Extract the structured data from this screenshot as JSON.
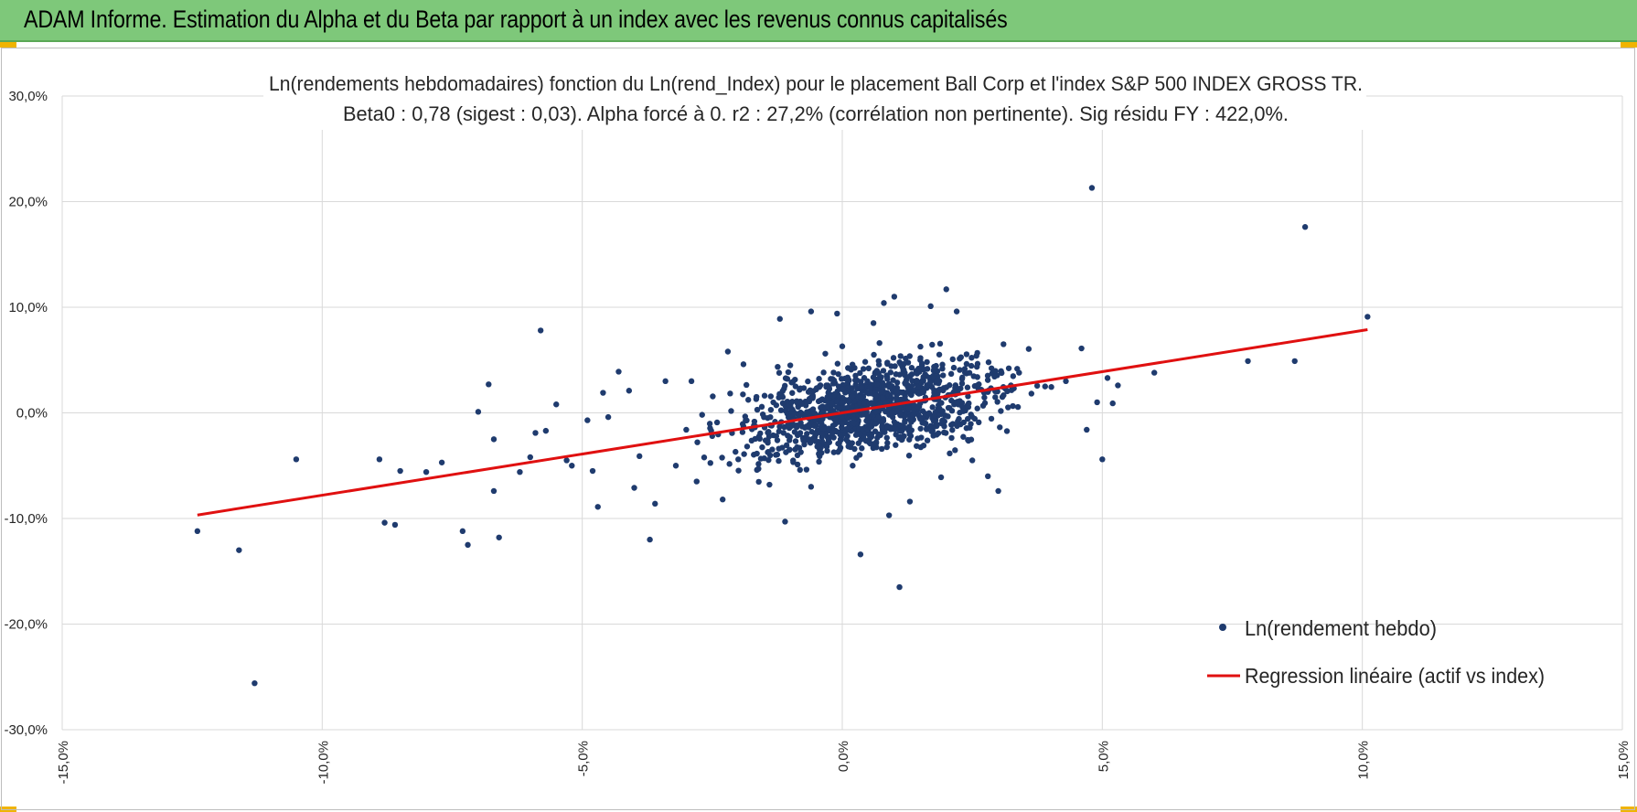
{
  "header": {
    "title": "ADAM Informe. Estimation du Alpha et du Beta par rapport à un index avec les revenus connus capitalisés",
    "background": "#7ec87a"
  },
  "chart_data": {
    "type": "scatter",
    "title": "Ln(rendements hebdomadaires) fonction du Ln(rend_Index) pour le placement Ball Corp et l'index S&P 500 INDEX GROSS TR.",
    "subtitle": "Beta0 : 0,78 (sigest : 0,03).  Alpha forcé à 0. r2 : 27,2% (corrélation non pertinente). Sig résidu FY : 422,0%.",
    "xlim": [
      -15,
      15
    ],
    "ylim": [
      -30,
      30
    ],
    "x_ticks": [
      "-15,0%",
      "-10,0%",
      "-5,0%",
      "0,0%",
      "5,0%",
      "10,0%",
      "15,0%"
    ],
    "y_ticks": [
      "30,0%",
      "20,0%",
      "10,0%",
      "0,0%",
      "-10,0%",
      "-20,0%",
      "-30,0%"
    ],
    "grid": true,
    "legend_position": "bottom-right",
    "series": [
      {
        "name": "Ln(rendement hebdo)",
        "kind": "scatter",
        "color": "#1f3b6e",
        "points": [
          [
            -12.4,
            -11.2
          ],
          [
            -11.6,
            -13.0
          ],
          [
            -11.3,
            -25.6
          ],
          [
            -10.5,
            -4.4
          ],
          [
            -8.9,
            -4.4
          ],
          [
            -8.8,
            -10.4
          ],
          [
            -8.5,
            -5.5
          ],
          [
            -8.6,
            -10.6
          ],
          [
            -8.0,
            -5.6
          ],
          [
            -7.7,
            -4.7
          ],
          [
            -7.3,
            -11.2
          ],
          [
            -7.2,
            -12.5
          ],
          [
            -7.0,
            0.1
          ],
          [
            -6.8,
            2.7
          ],
          [
            -6.7,
            -7.4
          ],
          [
            -6.7,
            -2.5
          ],
          [
            -6.6,
            -11.8
          ],
          [
            -6.2,
            -5.6
          ],
          [
            -6.0,
            -4.2
          ],
          [
            -5.9,
            -1.9
          ],
          [
            -5.7,
            -1.7
          ],
          [
            -5.8,
            7.8
          ],
          [
            -5.5,
            0.8
          ],
          [
            -5.3,
            -4.5
          ],
          [
            -5.2,
            -5.0
          ],
          [
            -4.9,
            -0.7
          ],
          [
            -4.8,
            -5.5
          ],
          [
            -4.7,
            -8.9
          ],
          [
            -4.6,
            1.9
          ],
          [
            -4.5,
            -0.4
          ],
          [
            -4.3,
            3.9
          ],
          [
            -4.1,
            2.1
          ],
          [
            -4.0,
            -7.1
          ],
          [
            -3.9,
            -4.1
          ],
          [
            -3.7,
            -12.0
          ],
          [
            -3.6,
            -8.6
          ],
          [
            -3.4,
            3.0
          ],
          [
            -3.2,
            -5.0
          ],
          [
            -3.0,
            -1.6
          ],
          [
            -2.9,
            3.0
          ],
          [
            -2.8,
            -6.5
          ],
          [
            -2.5,
            -2.2
          ],
          [
            -2.3,
            -8.2
          ],
          [
            -2.2,
            5.8
          ],
          [
            -2.0,
            -4.4
          ],
          [
            -1.9,
            4.6
          ],
          [
            -1.7,
            -1.2
          ],
          [
            -1.5,
            -4.3
          ],
          [
            -1.4,
            -6.8
          ],
          [
            -1.2,
            8.9
          ],
          [
            -1.1,
            -10.3
          ],
          [
            -1.0,
            4.5
          ],
          [
            -0.6,
            9.6
          ],
          [
            -0.6,
            -7.0
          ],
          [
            -0.4,
            -1.0
          ],
          [
            -0.1,
            9.4
          ],
          [
            0.0,
            6.3
          ],
          [
            0.2,
            -5.0
          ],
          [
            0.35,
            -13.4
          ],
          [
            0.6,
            8.5
          ],
          [
            0.8,
            10.4
          ],
          [
            1.0,
            11.0
          ],
          [
            0.9,
            -9.7
          ],
          [
            1.1,
            -16.5
          ],
          [
            1.3,
            -8.4
          ],
          [
            1.5,
            5.0
          ],
          [
            1.6,
            1.2
          ],
          [
            1.7,
            10.1
          ],
          [
            1.9,
            -6.1
          ],
          [
            2.0,
            11.7
          ],
          [
            2.2,
            9.6
          ],
          [
            2.5,
            -4.5
          ],
          [
            2.8,
            -6.0
          ],
          [
            3.0,
            -7.4
          ],
          [
            3.1,
            6.5
          ],
          [
            3.4,
            3.8
          ],
          [
            3.9,
            2.5
          ],
          [
            4.3,
            3.0
          ],
          [
            4.6,
            6.1
          ],
          [
            4.7,
            -1.6
          ],
          [
            4.8,
            21.3
          ],
          [
            4.9,
            1.0
          ],
          [
            5.0,
            -4.4
          ],
          [
            5.1,
            3.3
          ],
          [
            5.3,
            2.6
          ],
          [
            5.2,
            0.9
          ],
          [
            6.0,
            3.8
          ],
          [
            7.8,
            4.9
          ],
          [
            8.7,
            4.9
          ],
          [
            8.9,
            17.6
          ],
          [
            10.1,
            9.1
          ]
        ]
      },
      {
        "name": "Regression linéaire (actif vs index)",
        "kind": "line",
        "color": "#e01010",
        "beta": 0.78,
        "x_range": [
          -12.4,
          10.1
        ]
      }
    ]
  }
}
